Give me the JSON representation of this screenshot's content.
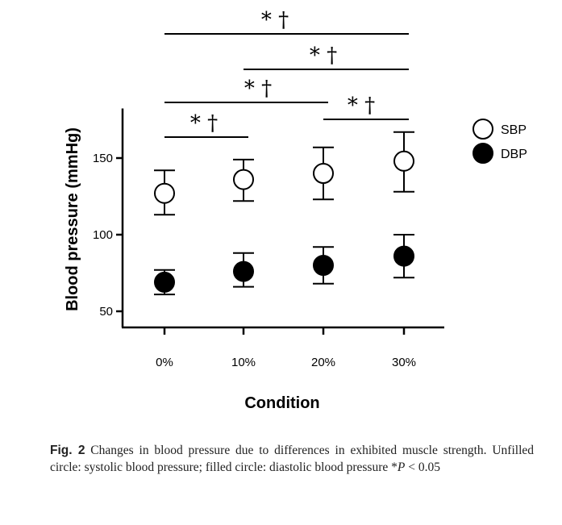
{
  "chart_data": {
    "type": "scatter",
    "categories": [
      "0%",
      "10%",
      "20%",
      "30%"
    ],
    "xlabel": "Condition",
    "ylabel": "Blood pressure (mmHg)",
    "ylim": [
      45,
      185
    ],
    "yticks": [
      50,
      100,
      150
    ],
    "grid": false,
    "legend_position": "right",
    "series": [
      {
        "name": "SBP",
        "marker": "open-circle",
        "values": [
          127,
          136,
          140,
          148
        ],
        "err_low": [
          113,
          122,
          123,
          128
        ],
        "err_high": [
          142,
          149,
          157,
          167
        ]
      },
      {
        "name": "DBP",
        "marker": "filled-circle",
        "values": [
          69,
          76,
          80,
          86
        ],
        "err_low": [
          61,
          66,
          68,
          72
        ],
        "err_high": [
          77,
          88,
          92,
          100
        ]
      }
    ],
    "significance": [
      {
        "from": 0,
        "to": 3,
        "label": "* †"
      },
      {
        "from": 1,
        "to": 3,
        "label": "* †"
      },
      {
        "from": 0,
        "to": 2,
        "label": "* †"
      },
      {
        "from": 2,
        "to": 3,
        "label": "* †"
      },
      {
        "from": 0,
        "to": 1,
        "label": "* †"
      }
    ]
  },
  "caption": {
    "label": "Fig. 2",
    "text": "Changes in blood pressure due to differences in exhibited muscle strength. Unfilled circle: systolic blood pressure; filled circle: diastolic blood pressure *",
    "p_symbol": "P",
    "p_value": " < 0.05"
  },
  "colors": {
    "ink": "#000000",
    "background": "#ffffff"
  }
}
